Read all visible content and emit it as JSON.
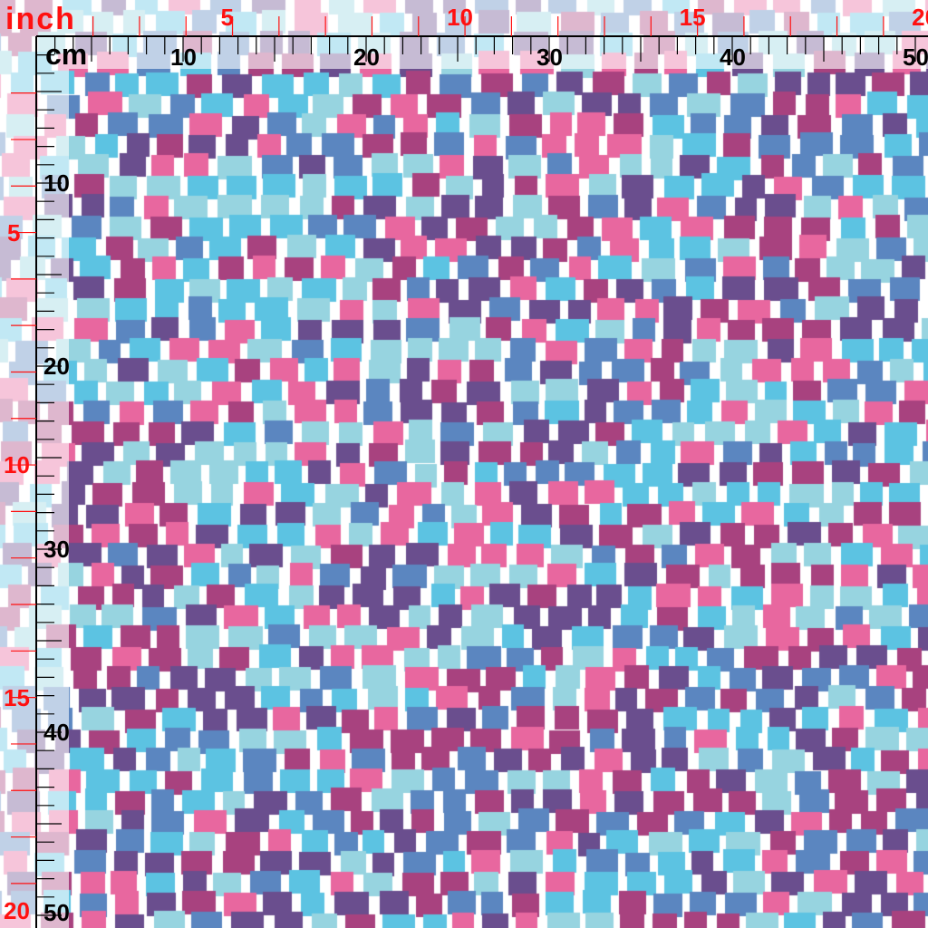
{
  "ruler": {
    "inch_unit": "inch",
    "cm_unit": "cm",
    "top_inch_labels": [
      "5",
      "10",
      "15",
      "20"
    ],
    "top_cm_labels": [
      "10",
      "20",
      "30",
      "40",
      "50"
    ],
    "left_inch_labels": [
      "5",
      "10",
      "15",
      "20"
    ],
    "left_cm_labels": [
      "10",
      "20",
      "30",
      "40",
      "50"
    ],
    "inch_color": "#ff1010",
    "cm_color": "#000000"
  },
  "fabric": {
    "pattern": "staggered rectangles mosaic",
    "background": "#ffffff",
    "colors": [
      "#e8679f",
      "#a8427f",
      "#6a4e8e",
      "#5b86c0",
      "#5cc3e2",
      "#97d4e0"
    ]
  }
}
